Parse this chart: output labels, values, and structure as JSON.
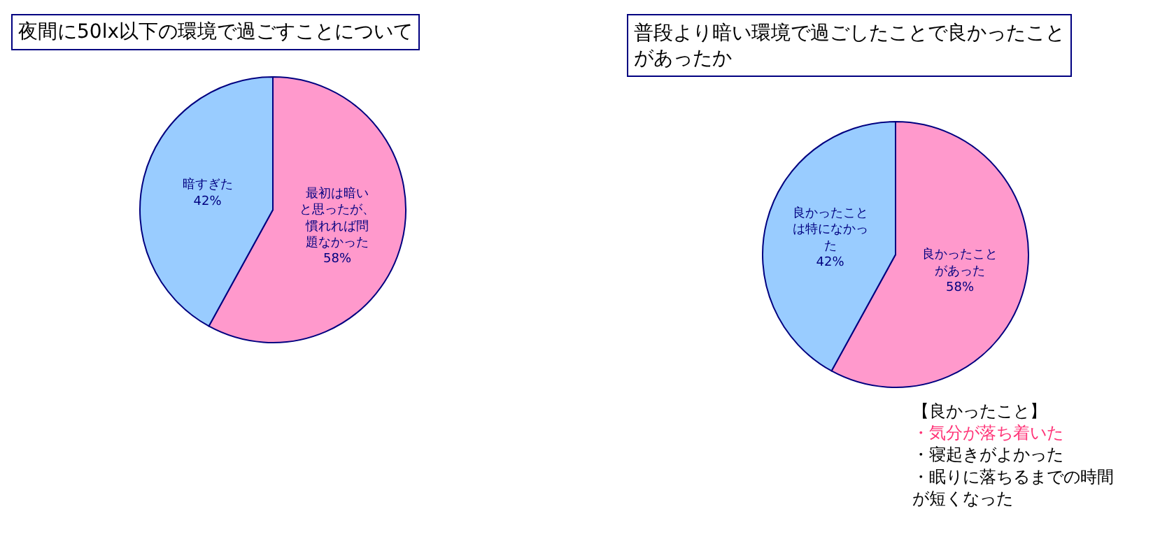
{
  "chart_data": [
    {
      "type": "pie",
      "title": "夜間に50lx以下の環境で過ごすことについて",
      "categories": [
        "最初は暗いと思ったが、慣れれば問題なかった",
        "暗すぎた"
      ],
      "values": [
        58,
        42
      ],
      "value_labels": [
        "58%",
        "42%"
      ],
      "colors": [
        "#ff99cc",
        "#99ccff"
      ],
      "legend": false
    },
    {
      "type": "pie",
      "title": "普段より暗い環境で過ごしたことで良かったことがあったか",
      "categories": [
        "良かったことがあった",
        "良かったことは特になかった"
      ],
      "values": [
        58,
        42
      ],
      "value_labels": [
        "58%",
        "42%"
      ],
      "colors": [
        "#ff99cc",
        "#99ccff"
      ],
      "legend": false,
      "annotations": [
        "【良かったこと】",
        "・気分が落ち着いた",
        "・寝起きがよかった",
        "・眠りに落ちるまでの時間が短くなった"
      ]
    }
  ]
}
